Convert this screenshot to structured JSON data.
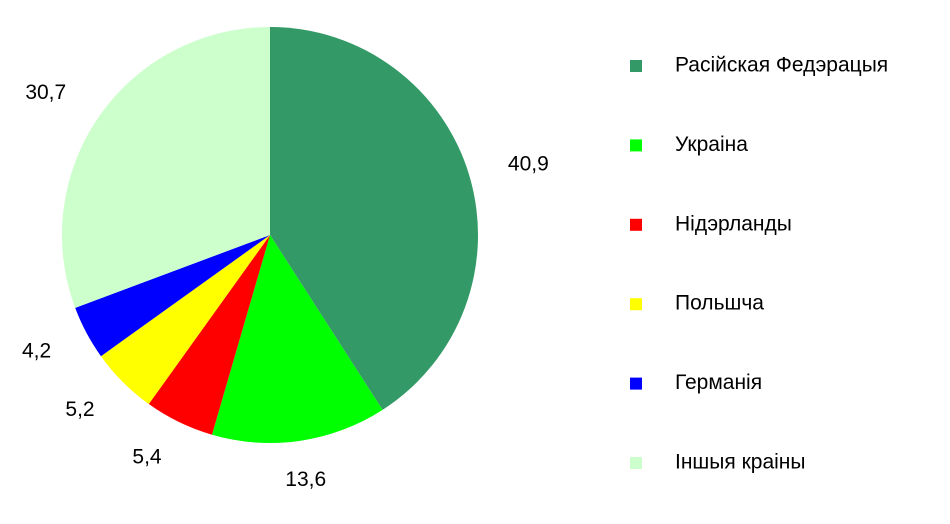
{
  "chart_data": {
    "type": "pie",
    "categories": [
      "Расійская Федэрацыя",
      "Украіна",
      "Нідэрланды",
      "Польшча",
      "Германія",
      "Іншыя краіны"
    ],
    "values": [
      40.9,
      13.6,
      5.4,
      5.2,
      4.2,
      30.7
    ],
    "value_labels": [
      "40,9",
      "13,6",
      "5,4",
      "5,2",
      "4,2",
      "30,7"
    ],
    "colors": [
      "#339966",
      "#00ff00",
      "#ff0000",
      "#ffff00",
      "#0000ff",
      "#ccffcc"
    ],
    "legend": "right"
  }
}
